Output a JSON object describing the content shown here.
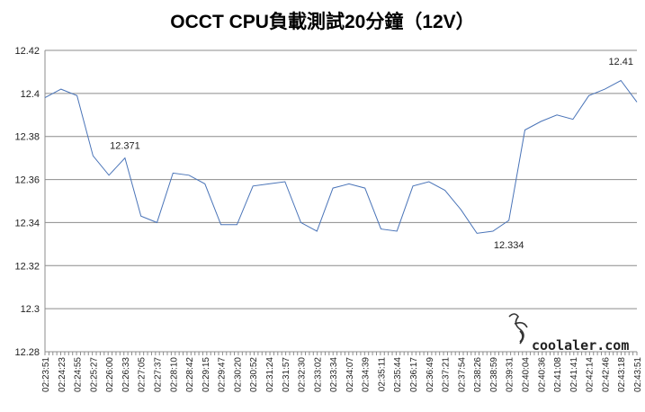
{
  "chart_data": {
    "type": "line",
    "title": "OCCT CPU負載測試20分鐘（12V）",
    "xlabel": "",
    "ylabel": "",
    "ylim": [
      12.28,
      12.42
    ],
    "yticks": [
      "12.42",
      "12.4",
      "12.38",
      "12.36",
      "12.34",
      "12.32",
      "12.3",
      "12.28"
    ],
    "grid": "horizontal",
    "legend": "none",
    "line_color": "#4a74b8",
    "x": [
      "02:23:51",
      "02:24:23",
      "02:24:55",
      "02:25:27",
      "02:26:00",
      "02:26:33",
      "02:27:05",
      "02:27:37",
      "02:28:10",
      "02:28:42",
      "02:29:15",
      "02:29:47",
      "02:30:20",
      "02:30:52",
      "02:31:24",
      "02:31:57",
      "02:32:30",
      "02:33:02",
      "02:33:34",
      "02:34:07",
      "02:34:39",
      "02:35:11",
      "02:35:44",
      "02:36:17",
      "02:36:49",
      "02:37:21",
      "02:37:54",
      "02:38:26",
      "02:38:59",
      "02:39:31",
      "02:40:04",
      "02:40:36",
      "02:41:08",
      "02:41:41",
      "02:42:14",
      "02:42:46",
      "02:43:18",
      "02:43:51"
    ],
    "series": [
      {
        "values": [
          12.398,
          12.402,
          12.399,
          12.371,
          12.362,
          12.37,
          12.343,
          12.34,
          12.363,
          12.362,
          12.358,
          12.339,
          12.339,
          12.357,
          12.358,
          12.359,
          12.34,
          12.336,
          12.356,
          12.358,
          12.356,
          12.337,
          12.336,
          12.357,
          12.359,
          12.355,
          12.346,
          12.335,
          12.336,
          12.341,
          12.383,
          12.387,
          12.39,
          12.388,
          12.399,
          12.402,
          12.406,
          12.396
        ]
      }
    ],
    "annotations": [
      {
        "text": "12.371",
        "x": "02:26:33",
        "y": 12.371
      },
      {
        "text": "12.334",
        "x": "02:39:31",
        "y": 12.334
      },
      {
        "text": "12.41",
        "x": "02:43:18",
        "y": 12.41
      }
    ]
  },
  "watermark": {
    "text": "coolaler.com"
  }
}
